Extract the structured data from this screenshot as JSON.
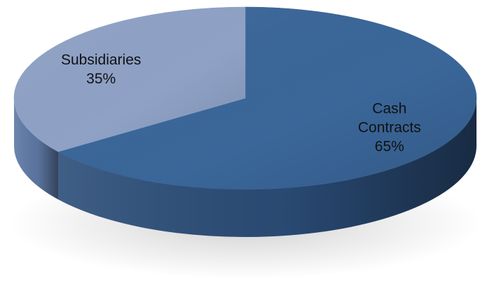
{
  "chart_data": {
    "type": "pie",
    "style": "3d",
    "title": "",
    "slices": [
      {
        "name": "Cash Contracts",
        "label_lines": [
          "Cash",
          "Contracts"
        ],
        "value": 65,
        "value_label": "65%",
        "color": "#3a6699",
        "side_color": "#2b4d78"
      },
      {
        "name": "Subsidiaries",
        "label_lines": [
          "Subsidiaries"
        ],
        "value": 35,
        "value_label": "35%",
        "color": "#8fa2c6",
        "side_color": "#5e79a6"
      }
    ],
    "legend": "none"
  }
}
